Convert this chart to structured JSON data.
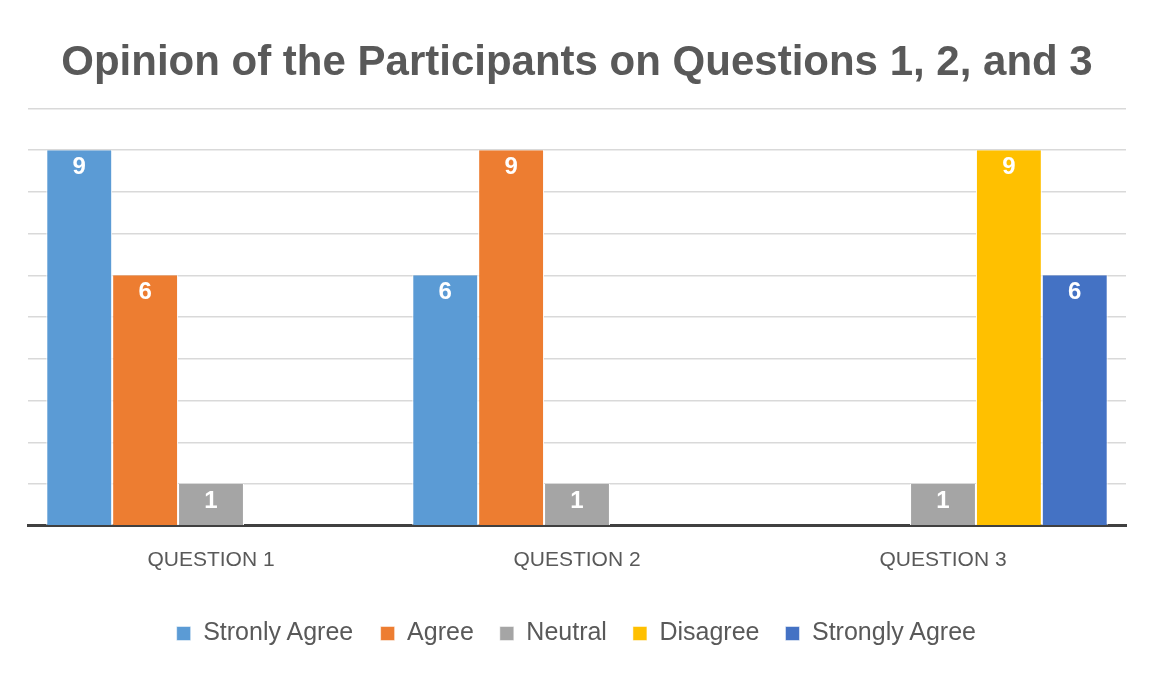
{
  "chart_data": {
    "type": "bar",
    "title": "Opinion of the Participants on Questions 1, 2, and 3",
    "categories": [
      "QUESTION 1",
      "QUESTION 2",
      "QUESTION 3"
    ],
    "series": [
      {
        "name": "Stronly Agree",
        "color": "#5b9bd5",
        "values": [
          9,
          6,
          null
        ]
      },
      {
        "name": "Agree",
        "color": "#ed7d31",
        "values": [
          6,
          9,
          null
        ]
      },
      {
        "name": "Neutral",
        "color": "#a5a5a5",
        "values": [
          1,
          1,
          1
        ]
      },
      {
        "name": "Disagree",
        "color": "#ffc000",
        "values": [
          null,
          null,
          9
        ]
      },
      {
        "name": "Strongly Agree",
        "color": "#4472c4",
        "values": [
          null,
          null,
          6
        ]
      }
    ],
    "ylim": [
      0,
      10
    ],
    "yticks": [
      0,
      1,
      2,
      3,
      4,
      5,
      6,
      7,
      8,
      9,
      10
    ],
    "tick_labels": "x",
    "grid": "y",
    "legend": "bottom",
    "data_labels": true
  }
}
